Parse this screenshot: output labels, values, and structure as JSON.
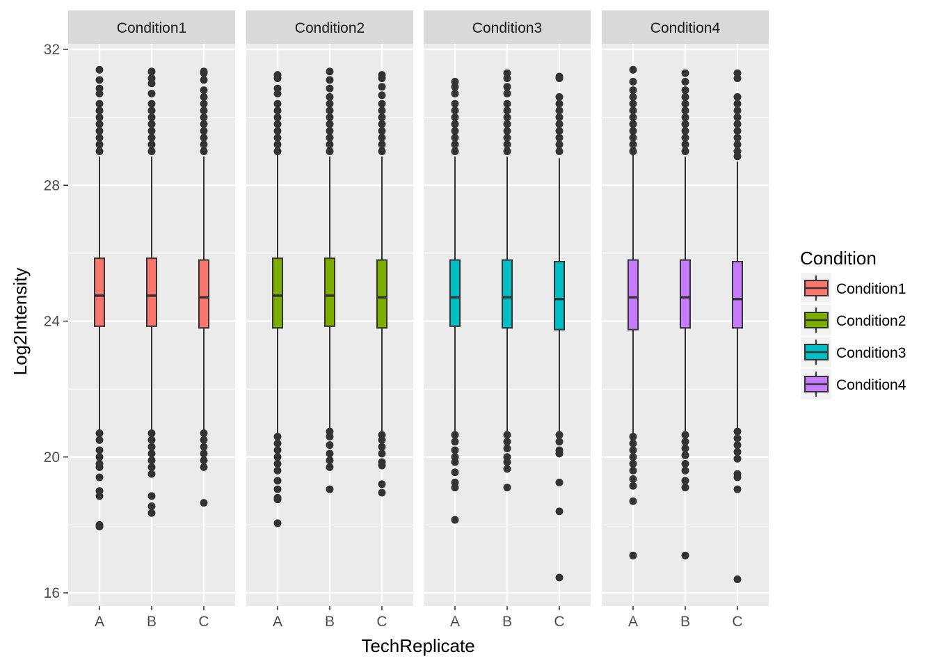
{
  "chart_data": {
    "type": "box",
    "xlabel": "TechReplicate",
    "ylabel": "Log2Intensity",
    "ylim": [
      15.6,
      32.3
    ],
    "yticks": [
      16,
      20,
      24,
      28,
      32
    ],
    "categories": [
      "A",
      "B",
      "C"
    ],
    "grid": true,
    "legend": {
      "title": "Condition",
      "placement": "right"
    },
    "facets": [
      {
        "name": "Condition1",
        "color": "#F8766D",
        "boxes": [
          {
            "x": "A",
            "whisker_low": 20.8,
            "q1": 23.85,
            "median": 24.75,
            "q3": 25.85,
            "whisker_high": 28.85,
            "outliers": [
              29.0,
              29.2,
              29.4,
              29.6,
              29.8,
              30.0,
              30.2,
              30.4,
              30.7,
              30.85,
              31.1,
              31.4,
              20.7,
              20.5,
              20.2,
              20.0,
              19.8,
              19.7,
              19.4,
              19.0,
              18.85,
              18.0,
              17.95
            ]
          },
          {
            "x": "B",
            "whisker_low": 20.8,
            "q1": 23.85,
            "median": 24.75,
            "q3": 25.85,
            "whisker_high": 28.85,
            "outliers": [
              29.0,
              29.2,
              29.4,
              29.6,
              29.8,
              30.0,
              30.2,
              30.4,
              30.7,
              31.0,
              31.15,
              31.35,
              20.7,
              20.5,
              20.3,
              20.1,
              19.9,
              19.7,
              19.5,
              18.85,
              18.55,
              18.35
            ]
          },
          {
            "x": "C",
            "whisker_low": 20.75,
            "q1": 23.8,
            "median": 24.7,
            "q3": 25.8,
            "whisker_high": 28.85,
            "outliers": [
              29.0,
              29.2,
              29.4,
              29.6,
              29.8,
              30.0,
              30.2,
              30.4,
              30.6,
              30.8,
              31.1,
              31.3,
              31.35,
              20.7,
              20.5,
              20.3,
              20.1,
              19.9,
              19.7,
              18.65
            ]
          }
        ]
      },
      {
        "name": "Condition2",
        "color": "#7CAE00",
        "boxes": [
          {
            "x": "A",
            "whisker_low": 20.7,
            "q1": 23.8,
            "median": 24.75,
            "q3": 25.85,
            "whisker_high": 28.9,
            "outliers": [
              29.0,
              29.2,
              29.4,
              29.6,
              29.8,
              30.0,
              30.2,
              30.4,
              30.7,
              30.85,
              31.15,
              31.25,
              20.6,
              20.4,
              20.2,
              20.0,
              19.8,
              19.6,
              19.3,
              19.05,
              18.8,
              18.75,
              18.05
            ]
          },
          {
            "x": "B",
            "whisker_low": 20.85,
            "q1": 23.85,
            "median": 24.75,
            "q3": 25.85,
            "whisker_high": 28.85,
            "outliers": [
              29.0,
              29.2,
              29.4,
              29.6,
              29.8,
              30.0,
              30.2,
              30.4,
              30.6,
              30.85,
              31.1,
              31.35,
              20.75,
              20.6,
              20.35,
              20.1,
              19.9,
              19.7,
              19.05
            ]
          },
          {
            "x": "C",
            "whisker_low": 20.75,
            "q1": 23.8,
            "median": 24.7,
            "q3": 25.8,
            "whisker_high": 28.85,
            "outliers": [
              29.0,
              29.2,
              29.4,
              29.6,
              29.8,
              30.0,
              30.2,
              30.4,
              30.65,
              30.9,
              31.15,
              31.25,
              20.65,
              20.5,
              20.3,
              20.1,
              19.85,
              19.75,
              19.2,
              18.95
            ]
          }
        ]
      },
      {
        "name": "Condition3",
        "color": "#00BFC4",
        "boxes": [
          {
            "x": "A",
            "whisker_low": 20.75,
            "q1": 23.85,
            "median": 24.7,
            "q3": 25.8,
            "whisker_high": 28.85,
            "outliers": [
              29.0,
              29.2,
              29.4,
              29.6,
              29.8,
              30.0,
              30.2,
              30.4,
              30.7,
              30.9,
              31.05,
              20.65,
              20.45,
              20.2,
              20.0,
              19.85,
              19.55,
              19.25,
              19.1,
              18.15
            ]
          },
          {
            "x": "B",
            "whisker_low": 20.75,
            "q1": 23.8,
            "median": 24.7,
            "q3": 25.8,
            "whisker_high": 28.85,
            "outliers": [
              29.0,
              29.2,
              29.4,
              29.6,
              29.8,
              30.0,
              30.2,
              30.4,
              30.7,
              30.9,
              31.15,
              31.3,
              20.65,
              20.45,
              20.25,
              20.0,
              19.85,
              19.65,
              19.1
            ]
          },
          {
            "x": "C",
            "whisker_low": 20.75,
            "q1": 23.75,
            "median": 24.65,
            "q3": 25.75,
            "whisker_high": 28.8,
            "outliers": [
              29.0,
              29.2,
              29.4,
              29.6,
              29.8,
              30.0,
              30.2,
              30.4,
              30.6,
              31.15,
              31.2,
              20.65,
              20.45,
              20.2,
              20.1,
              19.25,
              18.4,
              16.45
            ]
          }
        ]
      },
      {
        "name": "Condition4",
        "color": "#C77CFF",
        "boxes": [
          {
            "x": "A",
            "whisker_low": 20.7,
            "q1": 23.75,
            "median": 24.7,
            "q3": 25.8,
            "whisker_high": 28.9,
            "outliers": [
              29.0,
              29.2,
              29.4,
              29.6,
              29.8,
              30.0,
              30.2,
              30.4,
              30.6,
              30.8,
              31.05,
              31.4,
              20.6,
              20.4,
              20.2,
              20.0,
              19.8,
              19.6,
              19.35,
              19.15,
              18.7,
              17.1
            ]
          },
          {
            "x": "B",
            "whisker_low": 20.75,
            "q1": 23.8,
            "median": 24.7,
            "q3": 25.8,
            "whisker_high": 28.85,
            "outliers": [
              29.0,
              29.2,
              29.4,
              29.6,
              29.8,
              30.0,
              30.2,
              30.4,
              30.6,
              30.8,
              31.05,
              31.3,
              20.65,
              20.45,
              20.25,
              20.05,
              19.8,
              19.6,
              19.3,
              19.1,
              17.1
            ]
          },
          {
            "x": "C",
            "whisker_low": 20.85,
            "q1": 23.8,
            "median": 24.65,
            "q3": 25.75,
            "whisker_high": 28.7,
            "outliers": [
              28.85,
              29.0,
              29.2,
              29.4,
              29.6,
              29.8,
              30.0,
              30.2,
              30.4,
              30.6,
              31.15,
              31.3,
              20.75,
              20.55,
              20.35,
              20.15,
              19.95,
              19.5,
              19.4,
              19.05,
              16.4
            ]
          }
        ]
      }
    ]
  }
}
